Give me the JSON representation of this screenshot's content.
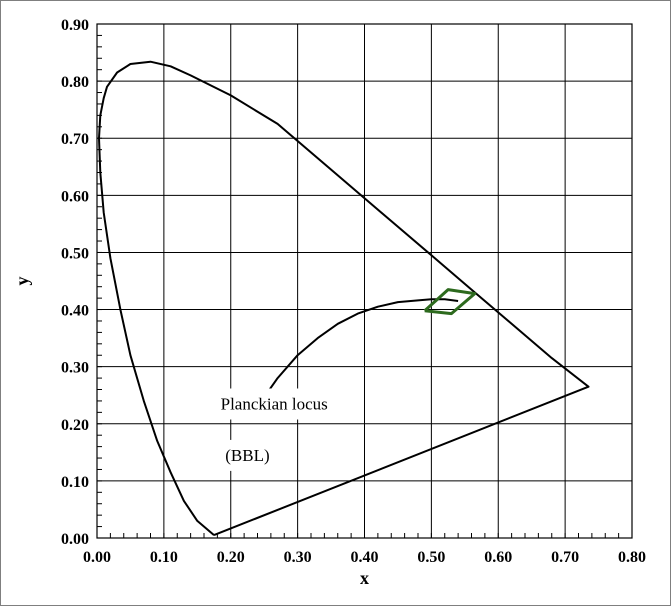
{
  "chart_data": {
    "type": "line",
    "title": "",
    "xlabel": "x",
    "ylabel": "y",
    "xlim": [
      0.0,
      0.8
    ],
    "ylim": [
      0.0,
      0.9
    ],
    "grid": true,
    "x_ticks": [
      "0.00",
      "0.10",
      "0.20",
      "0.30",
      "0.40",
      "0.50",
      "0.60",
      "0.70",
      "0.80"
    ],
    "y_ticks": [
      "0.00",
      "0.10",
      "0.20",
      "0.30",
      "0.40",
      "0.50",
      "0.60",
      "0.70",
      "0.80",
      "0.90"
    ],
    "series": [
      {
        "color": "#000000",
        "x": [
          0.175,
          0.15,
          0.13,
          0.11,
          0.09,
          0.07,
          0.05,
          0.035,
          0.02,
          0.01,
          0.005,
          0.003,
          0.005,
          0.01,
          0.015,
          0.03,
          0.05,
          0.08,
          0.11,
          0.14,
          0.2,
          0.27,
          0.35,
          0.44,
          0.5,
          0.56,
          0.62,
          0.68,
          0.735,
          0.175
        ],
        "y": [
          0.005,
          0.03,
          0.065,
          0.115,
          0.17,
          0.24,
          0.32,
          0.4,
          0.49,
          0.57,
          0.64,
          0.7,
          0.74,
          0.77,
          0.79,
          0.815,
          0.83,
          0.834,
          0.826,
          0.81,
          0.775,
          0.725,
          0.645,
          0.555,
          0.495,
          0.435,
          0.375,
          0.315,
          0.265,
          0.005
        ]
      },
      {
        "color": "#000000",
        "x": [
          0.24,
          0.27,
          0.3,
          0.33,
          0.36,
          0.39,
          0.42,
          0.45,
          0.48,
          0.5,
          0.52,
          0.54
        ],
        "y": [
          0.23,
          0.28,
          0.32,
          0.35,
          0.375,
          0.393,
          0.405,
          0.413,
          0.416,
          0.418,
          0.418,
          0.415
        ]
      },
      {
        "color": "#2d6a1e",
        "x": [
          0.49,
          0.525,
          0.565,
          0.53,
          0.49
        ],
        "y": [
          0.398,
          0.435,
          0.428,
          0.393,
          0.398
        ]
      }
    ],
    "annotations": [
      {
        "text": "Planckian locus",
        "x": 0.265,
        "y": 0.225
      },
      {
        "text": "(BBL)",
        "x": 0.225,
        "y": 0.135
      }
    ]
  }
}
